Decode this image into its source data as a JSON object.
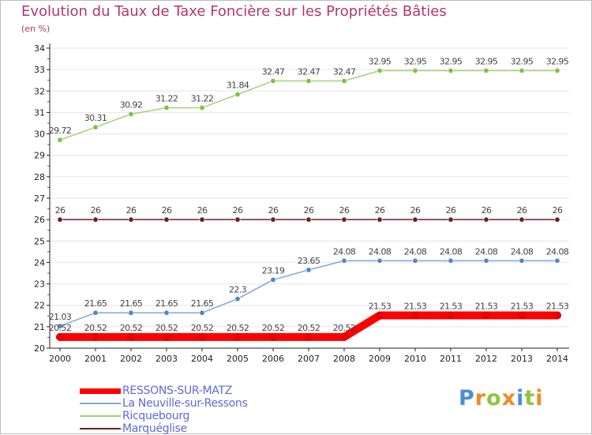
{
  "title": "Evolution du Taux de Taxe Foncière sur les Propriétés Bâties",
  "unit_label": "(en %)",
  "brand": {
    "letters": [
      "P",
      "r",
      "o",
      "x",
      "i",
      "t",
      "i"
    ],
    "colors": [
      "#4a8fd6",
      "#f08a24",
      "#8cc63f",
      "#f08a24",
      "#4a8fd6",
      "#8cc63f",
      "#f08a24"
    ]
  },
  "colors": {
    "title": "#b3366b",
    "axis": "#222222",
    "grid": "#e6e6e6",
    "tick_red": "#d0303a",
    "label": "#444444"
  },
  "chart_data": {
    "type": "line",
    "title": "Evolution du Taux de Taxe Foncière sur les Propriétés Bâties",
    "ylabel": "(en %)",
    "xlabel": "",
    "ylim": [
      20,
      34
    ],
    "yticks": [
      "20",
      "21",
      "22",
      "23",
      "24",
      "25",
      "26",
      "27",
      "28",
      "29",
      "30",
      "31",
      "32",
      "33",
      "34"
    ],
    "categories": [
      "2000",
      "2001",
      "2002",
      "2003",
      "2004",
      "2005",
      "2006",
      "2007",
      "2008",
      "2009",
      "2010",
      "2011",
      "2012",
      "2013",
      "2014"
    ],
    "grid": true,
    "legend_position": "bottom-left",
    "series": [
      {
        "name": "Marquéglise",
        "color": "#6e1f1f",
        "marker": "#6e1f1f",
        "values": [
          26,
          26,
          26,
          26,
          26,
          26,
          26,
          26,
          26,
          26,
          26,
          26,
          26,
          26,
          26
        ],
        "labels": [
          "26",
          "26",
          "26",
          "26",
          "26",
          "26",
          "26",
          "26",
          "26",
          "26",
          "26",
          "26",
          "26",
          "26",
          "26"
        ]
      },
      {
        "name": "Ricquebourg",
        "color": "#a3d17a",
        "marker": "#7cc242",
        "values": [
          29.72,
          30.31,
          30.92,
          31.22,
          31.22,
          31.84,
          32.47,
          32.47,
          32.47,
          32.95,
          32.95,
          32.95,
          32.95,
          32.95,
          32.95
        ],
        "labels": [
          "29.72",
          "30.31",
          "30.92",
          "31.22",
          "31.22",
          "31.84",
          "32.47",
          "32.47",
          "32.47",
          "32.95",
          "32.95",
          "32.95",
          "32.95",
          "32.95",
          "32.95"
        ]
      },
      {
        "name": "La Neuville-sur-Ressons",
        "color": "#7fa9d4",
        "marker": "#4f86c2",
        "values": [
          21.03,
          21.65,
          21.65,
          21.65,
          21.65,
          22.3,
          23.19,
          23.65,
          24.08,
          24.08,
          24.08,
          24.08,
          24.08,
          24.08,
          24.08
        ],
        "labels": [
          "21.03",
          "21.65",
          "21.65",
          "21.65",
          "21.65",
          "22.3",
          "23.19",
          "23.65",
          "24.08",
          "24.08",
          "24.08",
          "24.08",
          "24.08",
          "24.08",
          "24.08"
        ]
      },
      {
        "name": "RESSONS-SUR-MATZ",
        "color": "#ff0000",
        "marker": "#e60000",
        "values": [
          20.52,
          20.52,
          20.52,
          20.52,
          20.52,
          20.52,
          20.52,
          20.52,
          20.52,
          21.53,
          21.53,
          21.53,
          21.53,
          21.53,
          21.53
        ],
        "labels": [
          "20.52",
          "20.52",
          "20.52",
          "20.52",
          "20.52",
          "20.52",
          "20.52",
          "20.52",
          "20.52",
          "21.53",
          "21.53",
          "21.53",
          "21.53",
          "21.53",
          "21.53"
        ]
      }
    ],
    "legend": [
      {
        "label": "RESSONS-SUR-MATZ",
        "color": "#ff0000",
        "text_color": "#5b6bd6"
      },
      {
        "label": "La Neuville-sur-Ressons",
        "color": "#7fa9d4",
        "text_color": "#5b6bd6"
      },
      {
        "label": "Ricquebourg",
        "color": "#a3d17a",
        "text_color": "#5b6bd6"
      },
      {
        "label": "Marquéglise",
        "color": "#6e1f1f",
        "text_color": "#5b6bd6"
      }
    ]
  }
}
